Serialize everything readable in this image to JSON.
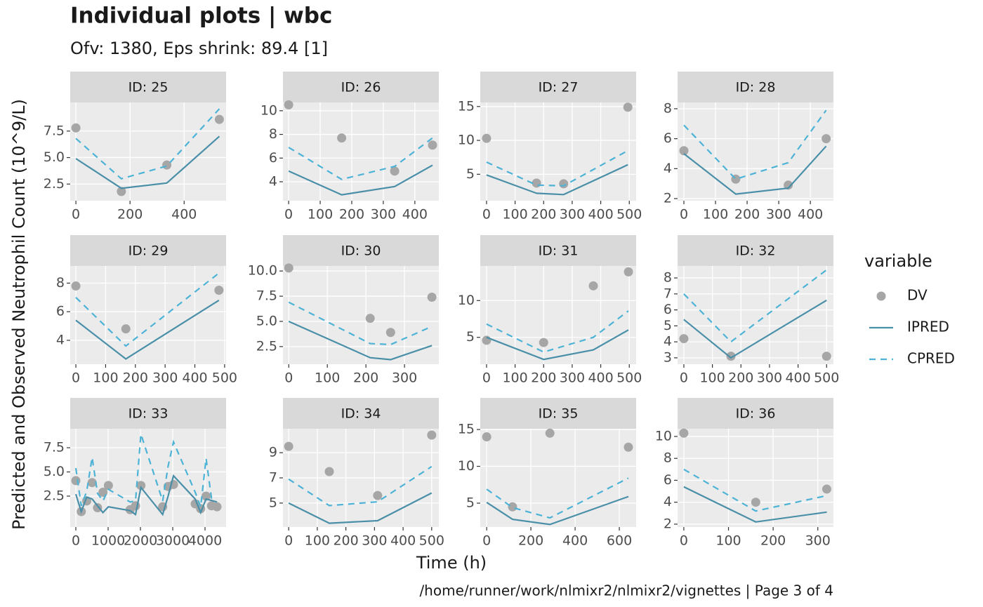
{
  "chart_data": {
    "type": "line",
    "title": "Individual plots | wbc",
    "subtitle": "Ofv: 1380, Eps shrink: 89.4 [1]",
    "x_label": "Time (h)",
    "y_label": "Predicted and Observed Neutrophil Count (10^9/L)",
    "caption": "/home/runner/work/nlmixr2/nlmixr2/vignettes | Page 3 of 4",
    "legend_title": "variable",
    "legend_position": "right",
    "grid": true,
    "series": [
      {
        "name": "DV",
        "color": "#a6a6a6",
        "style": "point"
      },
      {
        "name": "IPRED",
        "color": "#4a8fa8",
        "style": "solid"
      },
      {
        "name": "CPRED",
        "color": "#4db3d6",
        "style": "dashed"
      }
    ],
    "facets": [
      {
        "title": "ID: 25",
        "xlim": [
          -21,
          555
        ],
        "xticks": [
          0,
          200,
          400
        ],
        "ylim": [
          0.93,
          10.2
        ],
        "yticks": [
          2.5,
          {
            "value": 5,
            "label": "5.0"
          },
          7.5
        ],
        "series": [
          {
            "x": [
              0,
              168,
              336,
              530
            ],
            "values": [
              7.8,
              1.8,
              4.3,
              8.6
            ]
          },
          {
            "x": [
              0,
              168,
              336,
              530
            ],
            "values": [
              4.9,
              2.1,
              2.6,
              7.0
            ]
          },
          {
            "x": [
              0,
              168,
              336,
              530
            ],
            "values": [
              6.8,
              3.0,
              4.2,
              9.6
            ]
          }
        ]
      },
      {
        "title": "ID: 26",
        "xlim": [
          -18,
          476
        ],
        "xticks": [
          0,
          100,
          200,
          300,
          400
        ],
        "ylim": [
          2.4,
          10.7
        ],
        "yticks": [
          4,
          6,
          8,
          10
        ],
        "series": [
          {
            "x": [
              0,
              168,
              336,
              456
            ],
            "values": [
              10.5,
              7.7,
              4.9,
              7.1
            ]
          },
          {
            "x": [
              0,
              168,
              336,
              456
            ],
            "values": [
              4.9,
              2.9,
              3.6,
              5.4
            ]
          },
          {
            "x": [
              0,
              168,
              336,
              456
            ],
            "values": [
              6.9,
              4.2,
              5.3,
              7.7
            ]
          }
        ]
      },
      {
        "title": "ID: 27",
        "xlim": [
          -22,
          524
        ],
        "xticks": [
          0,
          100,
          200,
          300,
          400,
          500
        ],
        "ylim": [
          1.1,
          15.6
        ],
        "yticks": [
          5,
          10,
          15
        ],
        "series": [
          {
            "x": [
              0,
              175,
              270,
              495
            ],
            "values": [
              10.3,
              3.7,
              3.6,
              14.9
            ]
          },
          {
            "x": [
              0,
              175,
              270,
              495
            ],
            "values": [
              4.9,
              2.2,
              2.0,
              6.4
            ]
          },
          {
            "x": [
              0,
              175,
              270,
              495
            ],
            "values": [
              6.8,
              3.4,
              3.3,
              8.5
            ]
          }
        ]
      },
      {
        "title": "ID: 28",
        "xlim": [
          -20,
          473
        ],
        "xticks": [
          0,
          100,
          200,
          300,
          400
        ],
        "ylim": [
          1.86,
          8.42
        ],
        "yticks": [
          2,
          4,
          6,
          8
        ],
        "series": [
          {
            "x": [
              0,
              164,
              330,
              450
            ],
            "values": [
              5.2,
              3.3,
              2.9,
              6.0
            ]
          },
          {
            "x": [
              0,
              164,
              330,
              450
            ],
            "values": [
              5.0,
              2.3,
              2.7,
              5.5
            ]
          },
          {
            "x": [
              0,
              164,
              330,
              450
            ],
            "values": [
              6.9,
              3.3,
              4.4,
              7.9
            ]
          }
        ]
      },
      {
        "title": "ID: 29",
        "xlim": [
          -19,
          505
        ],
        "xticks": [
          0,
          100,
          200,
          300,
          400,
          500
        ],
        "ylim": [
          2.33,
          9.2
        ],
        "yticks": [
          4,
          6,
          8
        ],
        "series": [
          {
            "x": [
              0,
              168,
              481
            ],
            "values": [
              7.8,
              4.8,
              7.5
            ]
          },
          {
            "x": [
              0,
              168,
              481
            ],
            "values": [
              5.4,
              2.7,
              6.8
            ]
          },
          {
            "x": [
              0,
              168,
              481
            ],
            "values": [
              7.0,
              3.6,
              8.7
            ]
          }
        ]
      },
      {
        "title": "ID: 30",
        "xlim": [
          -15,
          389
        ],
        "xticks": [
          0,
          100,
          200,
          300
        ],
        "ylim": [
          0.75,
          10.5
        ],
        "yticks": [
          2.5,
          {
            "value": 5,
            "label": "5.0"
          },
          7.5,
          {
            "value": 10,
            "label": "10.0"
          }
        ],
        "series": [
          {
            "x": [
              0,
              211,
              264,
              371
            ],
            "values": [
              10.3,
              5.3,
              3.9,
              7.4
            ]
          },
          {
            "x": [
              0,
              211,
              264,
              371
            ],
            "values": [
              5.0,
              1.4,
              1.2,
              2.6
            ]
          },
          {
            "x": [
              0,
              211,
              264,
              371
            ],
            "values": [
              6.9,
              2.8,
              2.7,
              4.5
            ]
          }
        ]
      },
      {
        "title": "ID: 31",
        "xlim": [
          -22,
          524
        ],
        "xticks": [
          0,
          100,
          200,
          300,
          400,
          500
        ],
        "ylim": [
          1.35,
          14.7
        ],
        "yticks": [
          5,
          10
        ],
        "series": [
          {
            "x": [
              0,
              200,
              374,
              497
            ],
            "values": [
              4.6,
              4.3,
              12.0,
              13.9
            ]
          },
          {
            "x": [
              0,
              200,
              374,
              497
            ],
            "values": [
              5.0,
              2.0,
              3.3,
              6.0
            ]
          },
          {
            "x": [
              0,
              200,
              374,
              497
            ],
            "values": [
              6.8,
              3.0,
              5.0,
              8.6
            ]
          }
        ]
      },
      {
        "title": "ID: 32",
        "xlim": [
          -22,
          524
        ],
        "xticks": [
          0,
          100,
          200,
          300,
          400,
          500
        ],
        "ylim": [
          2.6,
          8.75
        ],
        "yticks": [
          3,
          4,
          5,
          6,
          7,
          8
        ],
        "series": [
          {
            "x": [
              0,
              165,
              500
            ],
            "values": [
              4.2,
              3.1,
              3.1
            ]
          },
          {
            "x": [
              0,
              165,
              500
            ],
            "values": [
              5.4,
              3.0,
              6.6
            ]
          },
          {
            "x": [
              0,
              165,
              500
            ],
            "values": [
              7.0,
              4.0,
              8.5
            ]
          }
        ]
      },
      {
        "title": "ID: 33",
        "xlim": [
          -174,
          4652
        ],
        "xticks": [
          0,
          1000,
          2000,
          3000,
          4000
        ],
        "ylim": [
          -0.69,
          9.46
        ],
        "yticks": [
          2.5,
          {
            "value": 5,
            "label": "5.0"
          },
          7.5
        ],
        "series": [
          {
            "x": [
              0,
              168,
              336,
              504,
              672,
              840,
              1008,
              1680,
              1848,
              2016,
              2688,
              2856,
              3024,
              3696,
              3864,
              4032,
              4200,
              4370
            ],
            "values": [
              4.1,
              0.9,
              2.0,
              3.9,
              1.3,
              2.9,
              3.6,
              1.1,
              1.5,
              3.6,
              1.4,
              3.5,
              3.7,
              1.7,
              1.2,
              2.5,
              1.5,
              1.4
            ]
          },
          {
            "x": [
              0,
              168,
              336,
              504,
              672,
              840,
              1008,
              1680,
              1848,
              2016,
              2688,
              2856,
              3024,
              3696,
              3864,
              4032,
              4370
            ],
            "values": [
              2.7,
              0.9,
              2.4,
              2.2,
              1.5,
              0.8,
              1.4,
              1.0,
              0.6,
              3.4,
              0.6,
              2.5,
              4.6,
              2.2,
              0.8,
              2.2,
              1.9
            ]
          },
          {
            "x": [
              0,
              168,
              336,
              504,
              672,
              840,
              1008,
              1680,
              1848,
              2016,
              2688,
              2856,
              3024,
              3696,
              3864,
              4032,
              4200,
              4370
            ],
            "values": [
              5.4,
              1.5,
              3.0,
              6.5,
              2.8,
              2.0,
              3.2,
              1.9,
              2.0,
              8.9,
              2.0,
              5.6,
              8.1,
              2.9,
              1.4,
              6.4,
              2.3,
              2.3
            ]
          }
        ]
      },
      {
        "title": "ID: 34",
        "xlim": [
          -20,
          525
        ],
        "xticks": [
          0,
          100,
          200,
          300,
          400,
          500
        ],
        "ylim": [
          3.1,
          10.9
        ],
        "yticks": [
          5,
          7,
          9
        ],
        "series": [
          {
            "x": [
              0,
              142,
              311,
              500
            ],
            "values": [
              9.5,
              7.5,
              5.6,
              10.4
            ]
          },
          {
            "x": [
              0,
              142,
              311,
              500
            ],
            "values": [
              5.0,
              3.4,
              3.6,
              5.8
            ]
          },
          {
            "x": [
              0,
              142,
              311,
              500
            ],
            "values": [
              6.9,
              4.8,
              5.1,
              7.9
            ]
          }
        ]
      },
      {
        "title": "ID: 35",
        "xlim": [
          -29,
          676
        ],
        "xticks": [
          0,
          200,
          400,
          600
        ],
        "ylim": [
          1.76,
          15.1
        ],
        "yticks": [
          5,
          10,
          15
        ],
        "series": [
          {
            "x": [
              0,
              117,
              286,
              641
            ],
            "values": [
              14.0,
              4.5,
              14.5,
              12.6
            ]
          },
          {
            "x": [
              0,
              117,
              286,
              641
            ],
            "values": [
              5.1,
              2.8,
              2.1,
              5.9
            ]
          },
          {
            "x": [
              0,
              117,
              286,
              641
            ],
            "values": [
              6.9,
              4.4,
              3.0,
              8.4
            ]
          }
        ]
      },
      {
        "title": "ID: 36",
        "xlim": [
          -14,
          335
        ],
        "xticks": [
          0,
          100,
          200,
          300
        ],
        "ylim": [
          1.74,
          10.7
        ],
        "yticks": [
          2,
          4,
          6,
          8,
          10
        ],
        "series": [
          {
            "x": [
              0,
              161,
              320
            ],
            "values": [
              10.3,
              4.0,
              5.2
            ]
          },
          {
            "x": [
              0,
              161,
              320
            ],
            "values": [
              5.4,
              2.2,
              3.1
            ]
          },
          {
            "x": [
              0,
              161,
              320
            ],
            "values": [
              7.0,
              3.2,
              4.6
            ]
          }
        ]
      }
    ]
  }
}
